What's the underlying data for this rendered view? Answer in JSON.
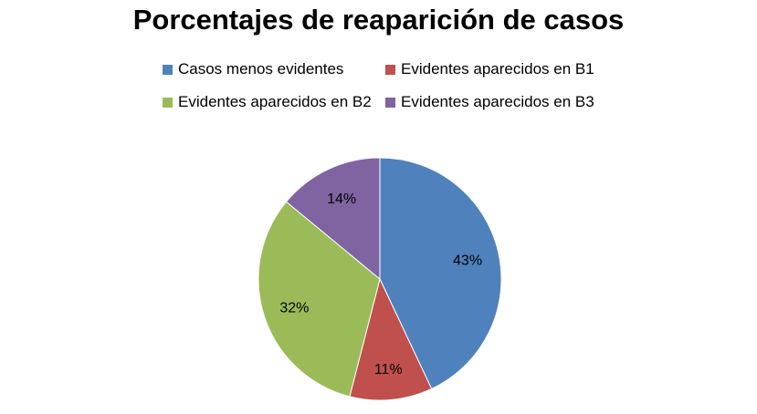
{
  "chart_data": {
    "type": "pie",
    "title": "Porcentajes de reaparición de casos",
    "legend_position": "top",
    "categories": [
      "Casos menos evidentes",
      "Evidentes aparecidos en B1",
      "Evidentes aparecidos en B2",
      "Evidentes aparecidos en B3"
    ],
    "values": [
      43,
      11,
      32,
      14
    ],
    "labels": [
      "43%",
      "11%",
      "32%",
      "14%"
    ],
    "colors": [
      "#4F81BD",
      "#C0504D",
      "#9BBB59",
      "#8064A2"
    ]
  }
}
